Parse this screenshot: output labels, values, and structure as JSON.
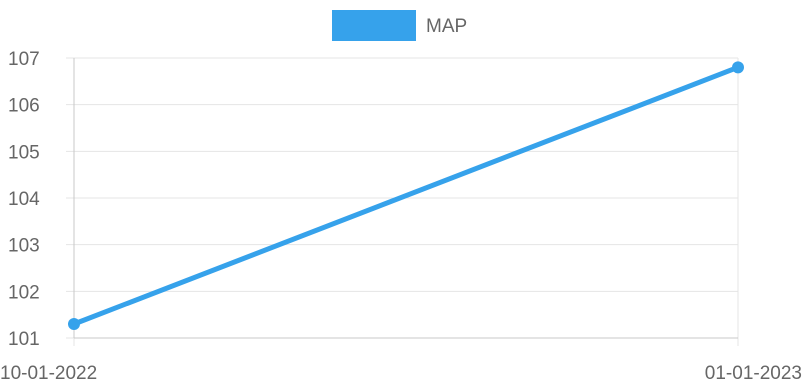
{
  "chart_data": {
    "type": "line",
    "x": [
      "10-01-2022",
      "01-01-2023"
    ],
    "series": [
      {
        "name": "MAP",
        "values": [
          101.3,
          106.8
        ],
        "color": "#36a2eb"
      }
    ],
    "ylim": [
      101,
      107
    ],
    "yticks": [
      101,
      102,
      103,
      104,
      105,
      106,
      107
    ],
    "xlabel": "",
    "ylabel": "",
    "grid": true,
    "legend_position": "top-center"
  }
}
